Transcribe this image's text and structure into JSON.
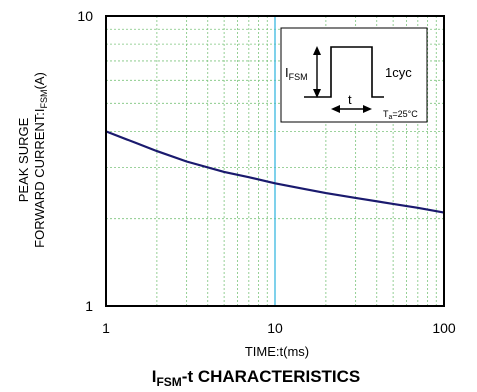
{
  "chart_data": {
    "type": "line",
    "title": "I",
    "title_sub": "FSM",
    "title_rest": "-t CHARACTERISTICS",
    "xlabel": "TIME:t(ms)",
    "ylabel_line1": "PEAK SURGE",
    "ylabel_line2_main": "FORWARD CURRENT:I",
    "ylabel_line2_sub": "FSM",
    "ylabel_line2_unit": "(A)",
    "xscale": "log",
    "yscale": "log",
    "xlim": [
      1,
      100
    ],
    "ylim": [
      1,
      10
    ],
    "x_tick_labels": [
      "1",
      "10",
      "100"
    ],
    "y_tick_labels": [
      "1",
      "10"
    ],
    "grid": true,
    "highlight_x": 10,
    "series": [
      {
        "color": "#1a1a6e",
        "x": [
          1,
          1.5,
          2,
          3,
          5,
          7,
          10,
          15,
          20,
          30,
          50,
          70,
          100
        ],
        "y": [
          4.0,
          3.65,
          3.42,
          3.15,
          2.9,
          2.78,
          2.65,
          2.53,
          2.45,
          2.36,
          2.25,
          2.18,
          2.1
        ]
      }
    ],
    "inset": {
      "label_main": "I",
      "label_sub": "FSM",
      "cycle_label": "1cyc",
      "t_label": "t",
      "temp_main": "T",
      "temp_sub": "a",
      "temp_rest": "=25°C"
    }
  },
  "colors": {
    "curve": "#1a1a6e",
    "highlight": "#3ab8e0",
    "grid": "#7cc47c"
  }
}
